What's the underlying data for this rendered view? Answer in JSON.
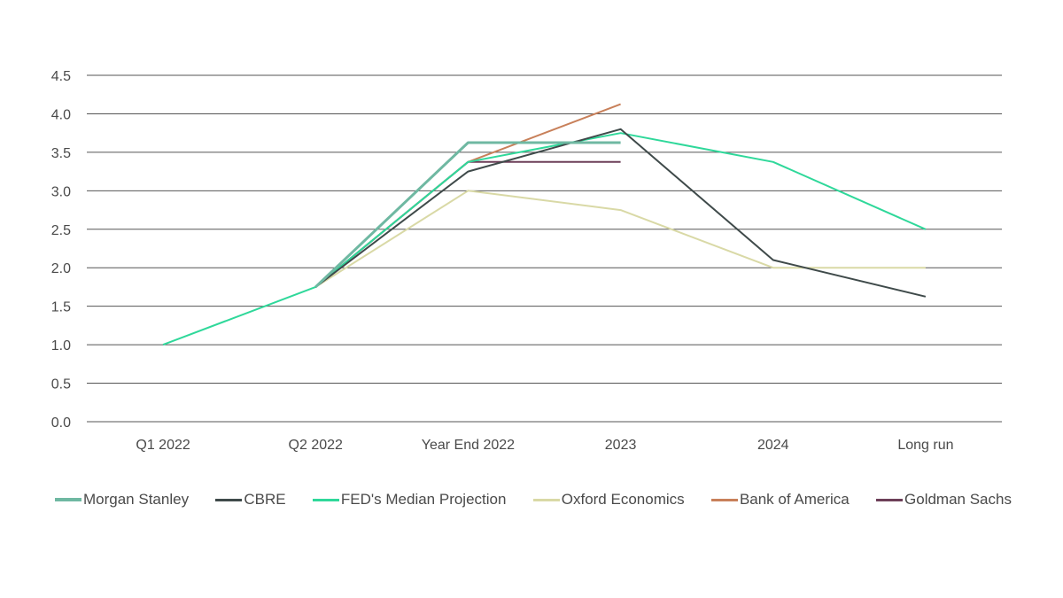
{
  "chart_data": {
    "type": "line",
    "title": "",
    "xlabel": "",
    "ylabel": "",
    "categories": [
      "Q1 2022",
      "Q2 2022",
      "Year End 2022",
      "2023",
      "2024",
      "Long run"
    ],
    "ylim": [
      0,
      4.5
    ],
    "yticks": [
      "0.0",
      "0.5",
      "1.0",
      "1.5",
      "2.0",
      "2.5",
      "3.0",
      "3.5",
      "4.0",
      "4.5"
    ],
    "grid": true,
    "legend_position": "bottom",
    "series": [
      {
        "name": "Oxford Economics",
        "color": "#d9d9a6",
        "values": [
          null,
          1.75,
          3.0,
          2.75,
          2.0,
          2.0
        ]
      },
      {
        "name": "Bank of America",
        "color": "#c8805a",
        "values": [
          null,
          1.75,
          3.375,
          4.125,
          null,
          null
        ]
      },
      {
        "name": "Goldman Sachs",
        "color": "#6d3f58",
        "values": [
          null,
          1.75,
          3.375,
          3.375,
          null,
          null
        ]
      },
      {
        "name": "FED's Median Projection",
        "color": "#2fd89a",
        "values": [
          1.0,
          1.75,
          3.375,
          3.75,
          3.375,
          2.5
        ]
      },
      {
        "name": "CBRE",
        "color": "#3f4a4a",
        "values": [
          null,
          1.75,
          3.25,
          3.8,
          2.1,
          1.625
        ]
      },
      {
        "name": "Morgan Stanley",
        "color": "#6fb8a2",
        "values": [
          null,
          1.75,
          3.625,
          3.625,
          null,
          null
        ]
      }
    ],
    "legend_order": [
      "Morgan Stanley",
      "CBRE",
      "FED's Median Projection",
      "Oxford Economics",
      "Bank of America",
      "Goldman Sachs"
    ]
  }
}
